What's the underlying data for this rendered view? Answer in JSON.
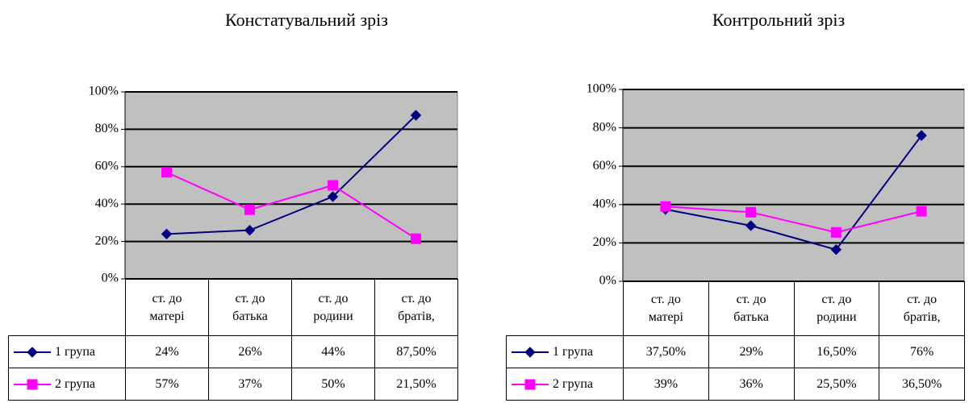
{
  "chart_data": [
    {
      "type": "line",
      "title": "Констатувальний зріз",
      "categories": [
        "ст. до матері",
        "ст. до батька",
        "ст. до родини",
        "ст. до братів,"
      ],
      "series": [
        {
          "name": "1 група",
          "color": "#000080",
          "marker": "diamond",
          "values": [
            24,
            26,
            44,
            87.5
          ],
          "value_labels": [
            "24%",
            "26%",
            "44%",
            "87,50%"
          ]
        },
        {
          "name": "2 група",
          "color": "#ff00ff",
          "marker": "square",
          "values": [
            57,
            37,
            50,
            21.5
          ],
          "value_labels": [
            "57%",
            "37%",
            "50%",
            "21,50%"
          ]
        }
      ],
      "ylim": [
        0,
        100
      ],
      "yticks": [
        {
          "value": 0,
          "label": "0%"
        },
        {
          "value": 20,
          "label": "20%"
        },
        {
          "value": 40,
          "label": "40%"
        },
        {
          "value": 60,
          "label": "60%"
        },
        {
          "value": 80,
          "label": "80%"
        },
        {
          "value": 100,
          "label": "100%"
        }
      ],
      "grid": true
    },
    {
      "type": "line",
      "title": "Контрольний зріз",
      "categories": [
        "ст. до матері",
        "ст. до батька",
        "ст. до родини",
        "ст. до братів,"
      ],
      "series": [
        {
          "name": "1 група",
          "color": "#000080",
          "marker": "diamond",
          "values": [
            37.5,
            29,
            16.5,
            76
          ],
          "value_labels": [
            "37,50%",
            "29%",
            "16,50%",
            "76%"
          ]
        },
        {
          "name": "2 група",
          "color": "#ff00ff",
          "marker": "square",
          "values": [
            39,
            36,
            25.5,
            36.5
          ],
          "value_labels": [
            "39%",
            "36%",
            "25,50%",
            "36,50%"
          ]
        }
      ],
      "ylim": [
        0,
        100
      ],
      "yticks": [
        {
          "value": 0,
          "label": "0%"
        },
        {
          "value": 20,
          "label": "20%"
        },
        {
          "value": 40,
          "label": "40%"
        },
        {
          "value": 60,
          "label": "60%"
        },
        {
          "value": 80,
          "label": "80%"
        },
        {
          "value": 100,
          "label": "100%"
        }
      ],
      "grid": true
    }
  ]
}
